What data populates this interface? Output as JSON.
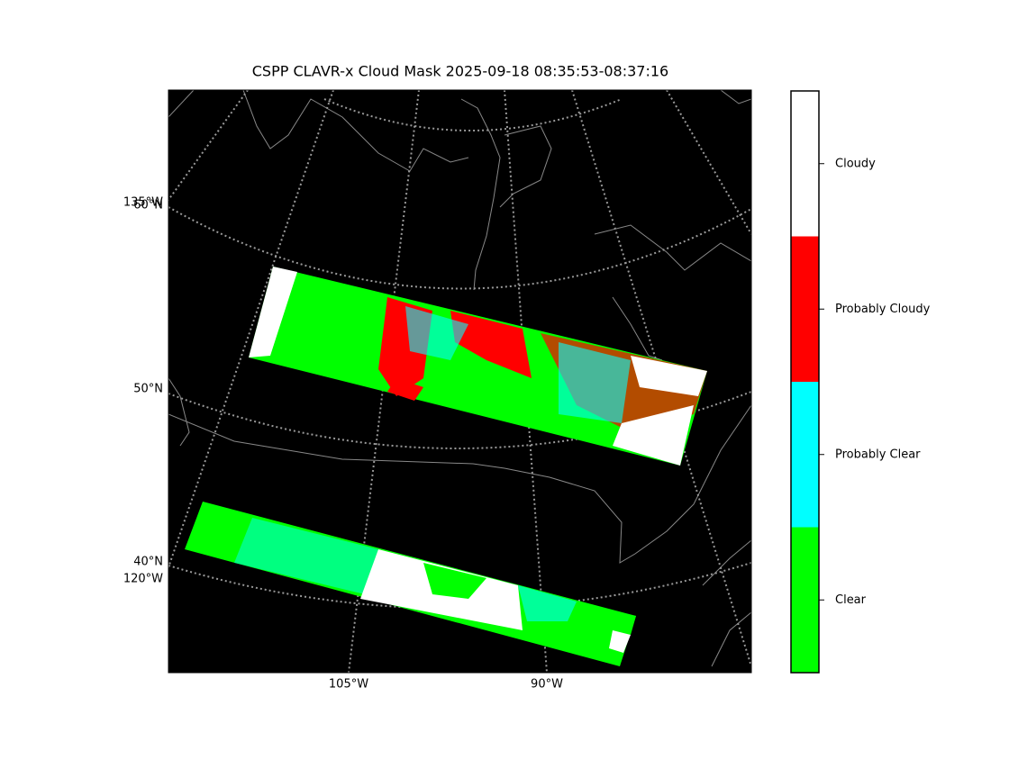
{
  "title": "CSPP CLAVR-x Cloud Mask 2025-09-18 08:35:53-08:37:16",
  "map": {
    "lat_labels": [
      "60°N",
      "50°N",
      "40°N"
    ],
    "lon_labels_left": [
      "135°W",
      "120°W"
    ],
    "lon_labels_bottom": [
      "105°W",
      "90°W"
    ]
  },
  "colorbar": {
    "categories": [
      {
        "label": "Cloudy",
        "color": "#ffffff"
      },
      {
        "label": "Probably Cloudy",
        "color": "#ff0000"
      },
      {
        "label": "Probably Clear",
        "color": "#00ffff"
      },
      {
        "label": "Clear",
        "color": "#00ff00"
      }
    ]
  }
}
